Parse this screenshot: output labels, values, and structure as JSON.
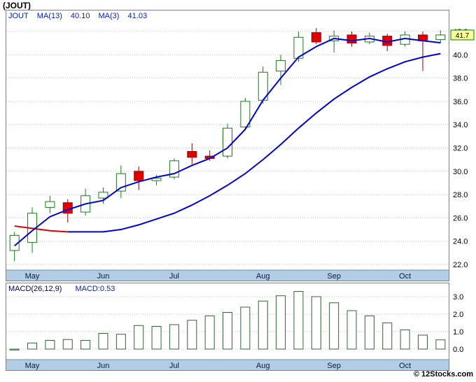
{
  "title": "(JOUT)",
  "legend": {
    "symbol": "JOUT",
    "ma13": "MA(13)",
    "ma13_value": "40.10",
    "ma3": "MA(3)",
    "ma3_value": "41.03"
  },
  "macd_legend": {
    "label": "MACD(26,12,9)",
    "value": "MACD:0.53"
  },
  "price_tag": "41.7",
  "copyright": "© 12Stocks.com",
  "colors": {
    "legend_blue": "#0022cc",
    "up": "#1a7a1a",
    "down_fill": "#e00000",
    "down_stroke": "#990000",
    "ma3_line": "#0000d8",
    "ma13_line": "#0000d8",
    "ma13_early": "#dd0000",
    "grid": "#c0c0c0",
    "band_fill": "#b2cde4",
    "band_edge": "#6f8faf",
    "band_text": "#0a1a3a",
    "border": "#808080",
    "tag_fill": "#ffff99",
    "tag_stroke": "#008000",
    "bar_stroke": "#336633"
  },
  "chart_data": [
    {
      "type": "candlestick",
      "title": "(JOUT) weekly price with moving averages",
      "ylim": [
        21.52,
        43.86
      ],
      "yticks": [
        "42.0",
        "40.0",
        "38.0",
        "36.0",
        "34.0",
        "32.0",
        "30.0",
        "28.0",
        "26.0",
        "24.0",
        "22.0"
      ],
      "xticks": [
        {
          "label": "May",
          "index": 1
        },
        {
          "label": "Jun",
          "index": 5
        },
        {
          "label": "Jul",
          "index": 9
        },
        {
          "label": "Aug",
          "index": 14
        },
        {
          "label": "Sep",
          "index": 18
        },
        {
          "label": "Oct",
          "index": 22
        }
      ],
      "candles": [
        [
          23.2,
          24.8,
          22.3,
          24.5
        ],
        [
          23.9,
          26.9,
          23.0,
          26.4
        ],
        [
          26.9,
          27.9,
          26.4,
          27.4
        ],
        [
          27.3,
          27.6,
          25.6,
          26.4
        ],
        [
          26.5,
          28.5,
          26.2,
          27.9
        ],
        [
          27.7,
          28.6,
          27.2,
          28.2
        ],
        [
          28.3,
          30.5,
          27.7,
          29.8
        ],
        [
          30.0,
          30.4,
          28.4,
          29.2
        ],
        [
          29.2,
          29.7,
          28.8,
          29.4
        ],
        [
          29.5,
          31.1,
          29.3,
          30.9
        ],
        [
          31.7,
          32.4,
          30.6,
          31.2
        ],
        [
          31.3,
          31.8,
          30.9,
          31.1
        ],
        [
          31.3,
          34.1,
          31.1,
          33.7
        ],
        [
          33.8,
          36.3,
          33.5,
          36.0
        ],
        [
          36.1,
          39.0,
          35.8,
          38.5
        ],
        [
          38.6,
          40.0,
          37.4,
          39.5
        ],
        [
          39.7,
          42.0,
          39.4,
          41.5
        ],
        [
          41.9,
          42.3,
          40.9,
          41.1
        ],
        [
          41.2,
          42.1,
          40.2,
          41.6
        ],
        [
          41.7,
          42.0,
          40.7,
          41.0
        ],
        [
          41.1,
          41.9,
          40.9,
          41.6
        ],
        [
          41.6,
          41.8,
          40.3,
          40.8
        ],
        [
          40.9,
          42.0,
          40.7,
          41.7
        ],
        [
          41.7,
          42.0,
          38.6,
          41.2
        ],
        [
          41.3,
          42.1,
          41.0,
          41.7
        ]
      ],
      "series": [
        {
          "name": "MA(3)",
          "last": 41.03,
          "values": [
            23.6,
            24.9,
            26.1,
            26.7,
            27.2,
            27.5,
            28.6,
            29.1,
            29.5,
            29.8,
            30.5,
            31.1,
            32.0,
            33.6,
            36.1,
            38.0,
            39.8,
            40.7,
            41.4,
            41.2,
            41.4,
            41.1,
            41.4,
            41.2,
            41.03
          ]
        },
        {
          "name": "MA(13)",
          "last": 40.1,
          "red_prefix": 3,
          "values": [
            25.3,
            25.1,
            24.9,
            24.8,
            24.8,
            24.8,
            25.0,
            25.4,
            25.9,
            26.4,
            27.1,
            27.9,
            28.8,
            29.8,
            31.0,
            32.3,
            33.7,
            35.0,
            36.2,
            37.2,
            38.1,
            38.8,
            39.4,
            39.8,
            40.1
          ]
        }
      ],
      "last_price": 41.7
    },
    {
      "type": "bar",
      "title": "MACD(26,12,9)",
      "last_value": 0.53,
      "ylim": [
        -0.6,
        3.8
      ],
      "yticks": [
        "3.0",
        "2.0",
        "1.0",
        "0.0"
      ],
      "xticks": [
        {
          "label": "May",
          "index": 1
        },
        {
          "label": "Jun",
          "index": 5
        },
        {
          "label": "Jul",
          "index": 9
        },
        {
          "label": "Aug",
          "index": 14
        },
        {
          "label": "Sep",
          "index": 18
        },
        {
          "label": "Oct",
          "index": 22
        }
      ],
      "values": [
        -0.05,
        0.35,
        0.5,
        0.55,
        0.5,
        0.9,
        0.85,
        1.35,
        1.3,
        1.4,
        1.65,
        1.9,
        2.1,
        2.4,
        2.75,
        3.05,
        3.3,
        3.0,
        2.65,
        2.2,
        1.9,
        1.5,
        1.1,
        0.8,
        0.53
      ]
    }
  ]
}
